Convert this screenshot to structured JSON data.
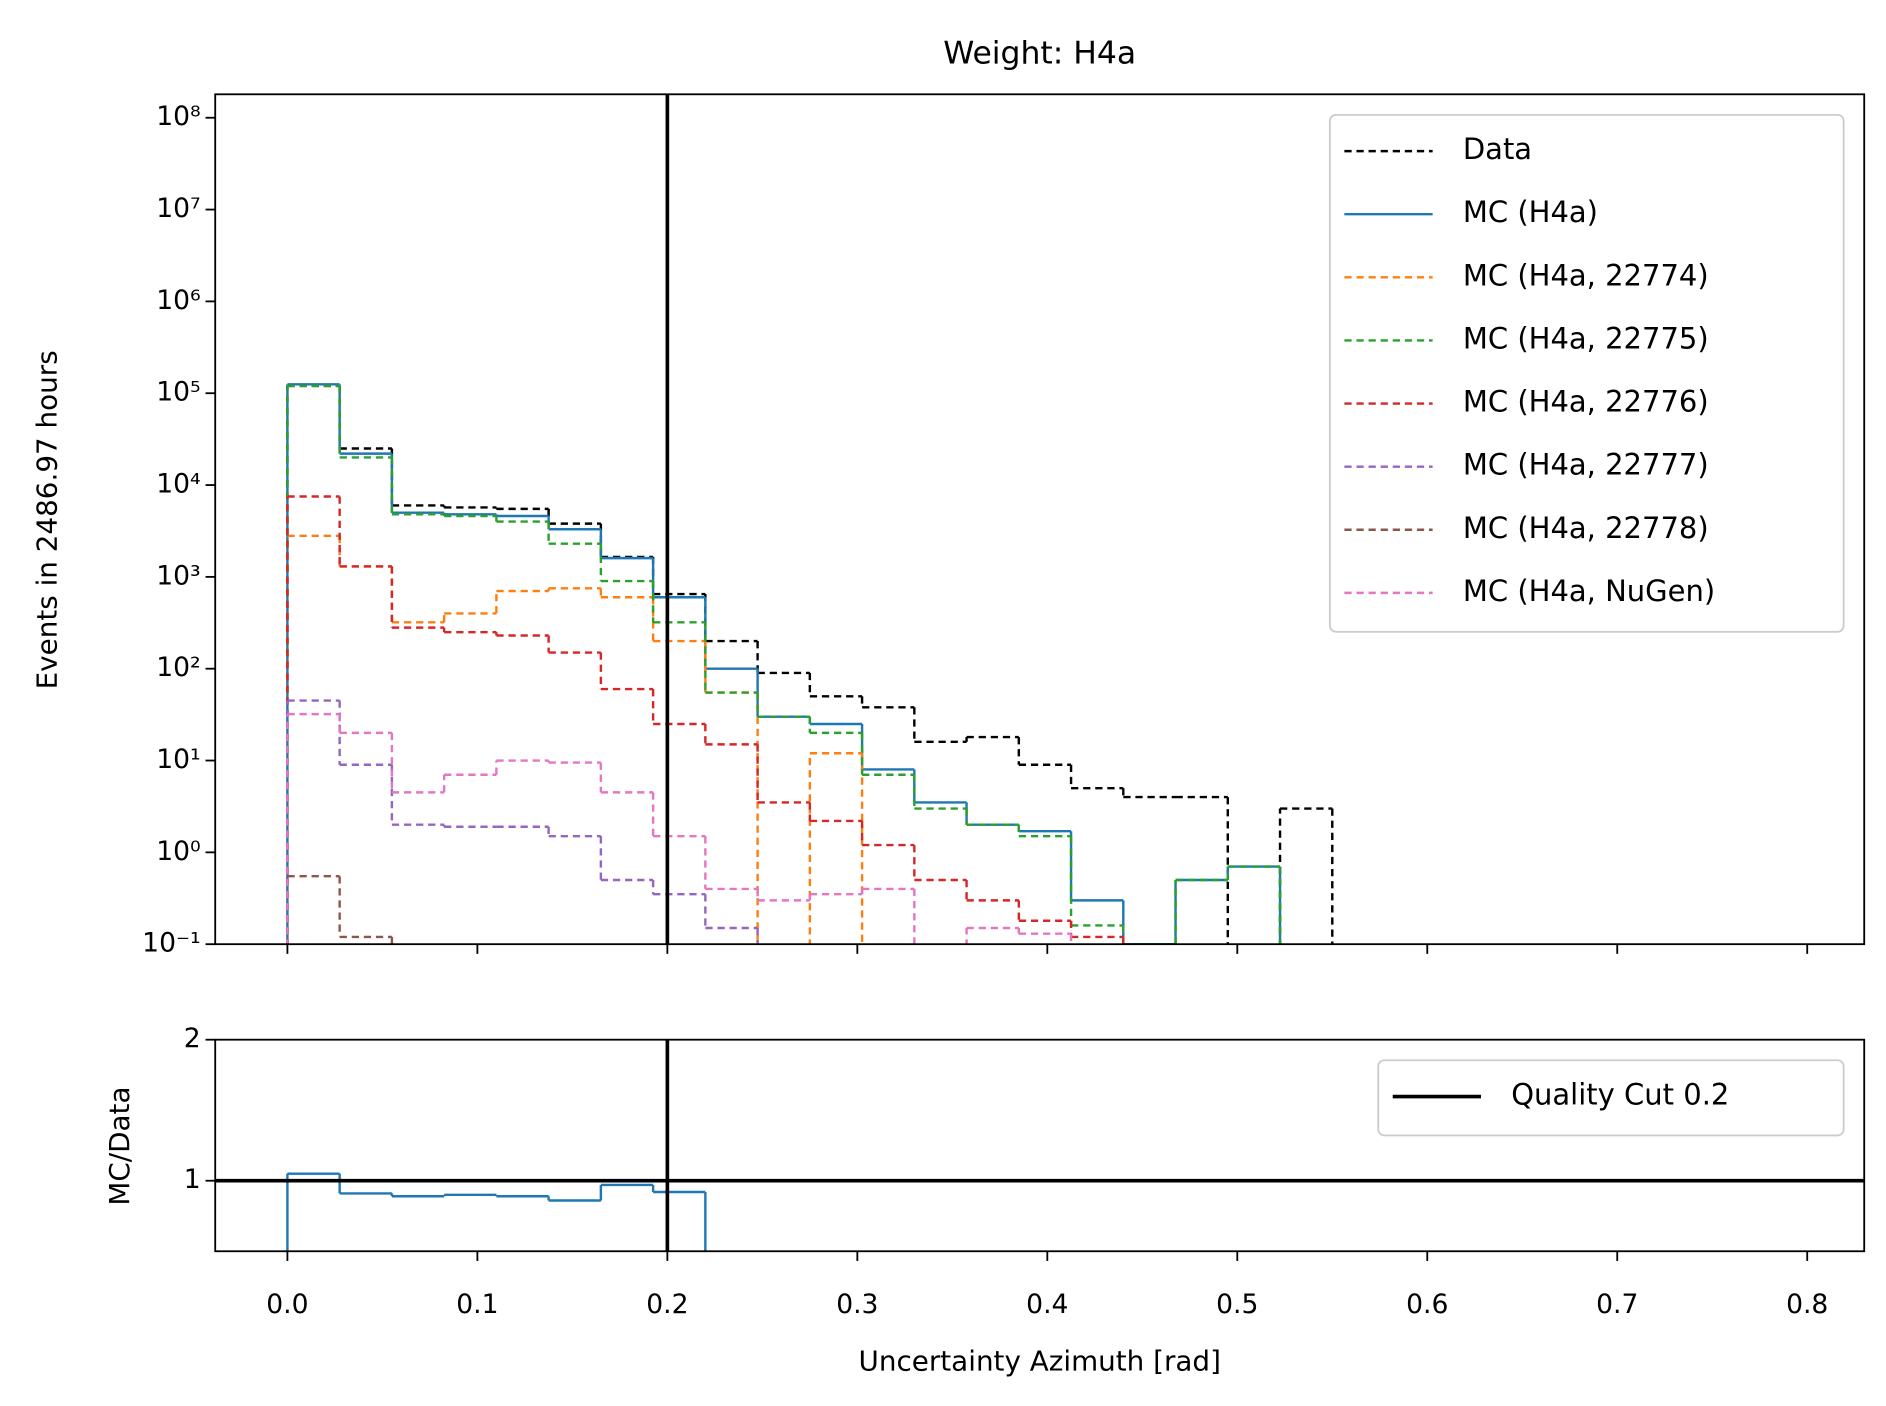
{
  "chart_data": [
    {
      "type": "histogram",
      "title": "Weight: H4a",
      "ylabel": "Events in 2486.97 hours",
      "bins": [
        0,
        0.0275,
        0.055,
        0.0825,
        0.11,
        0.1375,
        0.165,
        0.1925,
        0.22,
        0.2475,
        0.275,
        0.3025,
        0.33,
        0.3575,
        0.385,
        0.4125,
        0.44,
        0.4675,
        0.495,
        0.5225,
        0.55
      ],
      "series": [
        {
          "name": "Data",
          "color": "#000000",
          "linestyle": "dashed",
          "values": [
            120000,
            25000,
            6000,
            5700,
            5500,
            3800,
            1650,
            650,
            200,
            90,
            50,
            38,
            16,
            18,
            9,
            5,
            4,
            4,
            null,
            3
          ]
        },
        {
          "name": "MC (H4a)",
          "color": "#1f77b4",
          "linestyle": "solid",
          "values": [
            125000,
            22000,
            5000,
            4800,
            4600,
            3300,
            1600,
            600,
            100,
            30,
            25,
            8,
            3.5,
            2,
            1.7,
            0.3,
            0.1,
            0.5,
            0.7,
            null
          ]
        },
        {
          "name": "MC (H4a, 22774)",
          "color": "#ff7f0e",
          "linestyle": "dashed",
          "values": [
            2800,
            1300,
            320,
            400,
            700,
            750,
            600,
            200,
            55,
            null,
            12,
            null,
            null,
            null,
            null,
            null,
            null,
            null,
            null,
            null
          ]
        },
        {
          "name": "MC (H4a, 22775)",
          "color": "#2ca02c",
          "linestyle": "dashed",
          "values": [
            120000,
            20000,
            4800,
            4600,
            4000,
            2300,
            900,
            320,
            55,
            30,
            20,
            7,
            3,
            2,
            1.5,
            0.16,
            0.1,
            0.5,
            0.7,
            null
          ]
        },
        {
          "name": "MC (H4a, 22776)",
          "color": "#d62728",
          "linestyle": "dashed",
          "values": [
            7500,
            1300,
            280,
            250,
            230,
            150,
            60,
            25,
            15,
            3.5,
            2.2,
            1.2,
            0.5,
            0.3,
            0.18,
            0.12,
            null,
            null,
            null,
            null
          ]
        },
        {
          "name": "MC (H4a, 22777)",
          "color": "#9467bd",
          "linestyle": "dashed",
          "values": [
            45,
            9,
            2,
            1.9,
            1.9,
            1.5,
            0.5,
            0.35,
            0.15,
            null,
            null,
            null,
            null,
            null,
            null,
            null,
            null,
            null,
            null,
            null
          ]
        },
        {
          "name": "MC (H4a, 22778)",
          "color": "#8c564b",
          "linestyle": "dashed",
          "values": [
            0.55,
            0.12,
            null,
            null,
            null,
            null,
            null,
            null,
            null,
            null,
            null,
            null,
            null,
            null,
            null,
            null,
            null,
            null,
            null,
            null
          ]
        },
        {
          "name": "MC (H4a, NuGen)",
          "color": "#e377c2",
          "linestyle": "dashed",
          "values": [
            32,
            20,
            4.5,
            7,
            10,
            9.5,
            4.5,
            1.5,
            0.4,
            0.3,
            0.35,
            0.4,
            null,
            0.15,
            0.13,
            null,
            null,
            null,
            null,
            null
          ]
        }
      ],
      "xlim": [
        -0.038,
        0.83
      ],
      "xticks": [
        {
          "value": 0,
          "label": "0.0"
        },
        0.1,
        0.2,
        0.3,
        0.4,
        0.5,
        0.6,
        0.7,
        0.8
      ],
      "log_y": true,
      "ylim": [
        0.1,
        180000000
      ],
      "yticks": [
        {
          "value": 0.1,
          "label": "10⁻¹"
        },
        {
          "value": 1,
          "label": "10⁰"
        },
        {
          "value": 10,
          "label": "10¹"
        },
        {
          "value": 100,
          "label": "10²"
        },
        {
          "value": 1000,
          "label": "10³"
        },
        {
          "value": 10000,
          "label": "10⁴"
        },
        {
          "value": 100000,
          "label": "10⁵"
        },
        {
          "value": 1000000,
          "label": "10⁶"
        },
        {
          "value": 10000000,
          "label": "10⁷"
        },
        {
          "value": 100000000,
          "label": "10⁸"
        }
      ],
      "vline": {
        "x": 0.2,
        "color": "#000000"
      },
      "legend": "upper right"
    },
    {
      "type": "histogram",
      "ylabel": "MC/Data",
      "xlabel": "Uncertainty Azimuth [rad]",
      "bins": [
        0,
        0.0275,
        0.055,
        0.0825,
        0.11,
        0.1375,
        0.165,
        0.1925,
        0.22
      ],
      "values": [
        1.05,
        0.91,
        0.89,
        0.9,
        0.89,
        0.86,
        0.97,
        0.92
      ],
      "color": "#1f77b4",
      "xlim": [
        -0.038,
        0.83
      ],
      "xticks": [
        {
          "value": 0,
          "label": "0.0"
        },
        0.1,
        0.2,
        0.3,
        0.4,
        0.5,
        0.6,
        0.7,
        0.8
      ],
      "ylim": [
        0.5,
        2
      ],
      "yticks": [
        1,
        2
      ],
      "hline": 1,
      "vline": {
        "name": "Quality Cut 0.2",
        "x": 0.2,
        "color": "#000000"
      },
      "legend": "upper right"
    }
  ]
}
